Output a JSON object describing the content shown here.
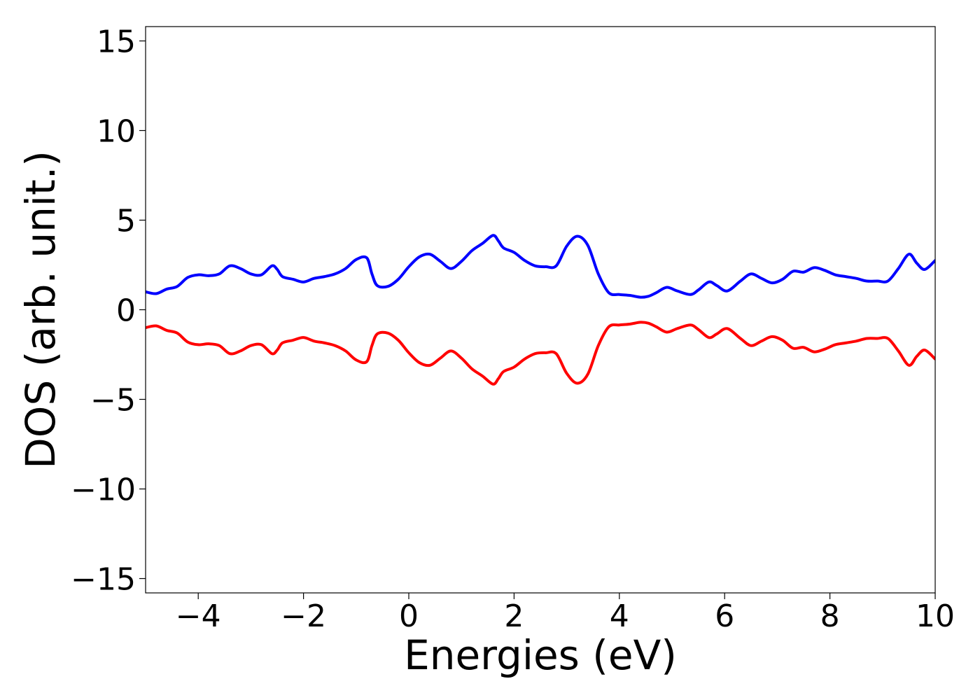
{
  "chart_data": {
    "type": "line",
    "xlabel": "Energies (eV)",
    "ylabel": "DOS (arb. unit.)",
    "xlim": [
      -5,
      10
    ],
    "ylim": [
      -15.8,
      15.8
    ],
    "xticks": [
      -4,
      -2,
      0,
      2,
      4,
      6,
      8,
      10
    ],
    "xtick_labels": [
      "−4",
      "−2",
      "0",
      "2",
      "4",
      "6",
      "8",
      "10"
    ],
    "yticks": [
      15,
      10,
      5,
      0,
      -5,
      -10,
      -15
    ],
    "ytick_labels": [
      "15",
      "10",
      "5",
      "0",
      "−5",
      "−10",
      "−15"
    ],
    "grid": false,
    "legend": "none",
    "series": [
      {
        "color": "#0000ff",
        "x": [
          -5.0,
          -4.8,
          -4.6,
          -4.4,
          -4.2,
          -4.0,
          -3.8,
          -3.6,
          -3.4,
          -3.2,
          -3.0,
          -2.8,
          -2.6,
          -2.5,
          -2.4,
          -2.2,
          -2.0,
          -1.8,
          -1.6,
          -1.4,
          -1.2,
          -1.0,
          -0.8,
          -0.7,
          -0.6,
          -0.4,
          -0.2,
          0.0,
          0.2,
          0.4,
          0.6,
          0.8,
          1.0,
          1.2,
          1.4,
          1.6,
          1.7,
          1.8,
          2.0,
          2.2,
          2.4,
          2.6,
          2.8,
          3.0,
          3.2,
          3.4,
          3.6,
          3.8,
          4.0,
          4.2,
          4.4,
          4.55,
          4.7,
          4.9,
          5.1,
          5.35,
          5.5,
          5.7,
          5.85,
          6.05,
          6.3,
          6.5,
          6.7,
          6.9,
          7.1,
          7.3,
          7.5,
          7.7,
          7.9,
          8.1,
          8.3,
          8.5,
          8.7,
          8.9,
          9.1,
          9.3,
          9.5,
          9.65,
          9.8,
          10.0
        ],
        "y": [
          1.0,
          0.9,
          1.15,
          1.3,
          1.8,
          1.95,
          1.9,
          2.0,
          2.45,
          2.3,
          2.0,
          1.95,
          2.45,
          2.25,
          1.85,
          1.7,
          1.55,
          1.75,
          1.85,
          2.0,
          2.3,
          2.8,
          2.9,
          2.0,
          1.35,
          1.3,
          1.7,
          2.4,
          2.95,
          3.1,
          2.7,
          2.3,
          2.7,
          3.3,
          3.7,
          4.15,
          3.85,
          3.45,
          3.2,
          2.75,
          2.45,
          2.4,
          2.45,
          3.55,
          4.1,
          3.6,
          2.0,
          0.95,
          0.85,
          0.8,
          0.7,
          0.75,
          0.95,
          1.25,
          1.05,
          0.85,
          1.1,
          1.55,
          1.35,
          1.05,
          1.6,
          2.0,
          1.75,
          1.5,
          1.7,
          2.15,
          2.1,
          2.35,
          2.2,
          1.95,
          1.85,
          1.75,
          1.6,
          1.6,
          1.6,
          2.3,
          3.1,
          2.6,
          2.25,
          2.75
        ]
      },
      {
        "color": "#ff0000",
        "x": [
          -5.0,
          -4.8,
          -4.6,
          -4.4,
          -4.2,
          -4.0,
          -3.8,
          -3.6,
          -3.4,
          -3.2,
          -3.0,
          -2.8,
          -2.6,
          -2.5,
          -2.4,
          -2.2,
          -2.0,
          -1.8,
          -1.6,
          -1.4,
          -1.2,
          -1.0,
          -0.8,
          -0.7,
          -0.6,
          -0.4,
          -0.2,
          0.0,
          0.2,
          0.4,
          0.6,
          0.8,
          1.0,
          1.2,
          1.4,
          1.6,
          1.7,
          1.8,
          2.0,
          2.2,
          2.4,
          2.6,
          2.8,
          3.0,
          3.2,
          3.4,
          3.6,
          3.8,
          4.0,
          4.2,
          4.4,
          4.55,
          4.7,
          4.9,
          5.1,
          5.35,
          5.5,
          5.7,
          5.85,
          6.05,
          6.3,
          6.5,
          6.7,
          6.9,
          7.1,
          7.3,
          7.5,
          7.7,
          7.9,
          8.1,
          8.3,
          8.5,
          8.7,
          8.9,
          9.1,
          9.3,
          9.5,
          9.65,
          9.8,
          10.0
        ],
        "y": [
          -1.0,
          -0.9,
          -1.15,
          -1.3,
          -1.8,
          -1.95,
          -1.9,
          -2.0,
          -2.45,
          -2.3,
          -2.0,
          -1.95,
          -2.45,
          -2.25,
          -1.85,
          -1.7,
          -1.55,
          -1.75,
          -1.85,
          -2.0,
          -2.3,
          -2.8,
          -2.9,
          -2.0,
          -1.35,
          -1.3,
          -1.7,
          -2.4,
          -2.95,
          -3.1,
          -2.7,
          -2.3,
          -2.7,
          -3.3,
          -3.7,
          -4.15,
          -3.85,
          -3.45,
          -3.2,
          -2.75,
          -2.45,
          -2.4,
          -2.45,
          -3.55,
          -4.1,
          -3.6,
          -2.0,
          -0.95,
          -0.85,
          -0.8,
          -0.7,
          -0.75,
          -0.95,
          -1.25,
          -1.05,
          -0.85,
          -1.1,
          -1.55,
          -1.35,
          -1.05,
          -1.6,
          -2.0,
          -1.75,
          -1.5,
          -1.7,
          -2.15,
          -2.1,
          -2.35,
          -2.2,
          -1.95,
          -1.85,
          -1.75,
          -1.6,
          -1.6,
          -1.6,
          -2.3,
          -3.1,
          -2.6,
          -2.25,
          -2.75
        ]
      }
    ]
  }
}
